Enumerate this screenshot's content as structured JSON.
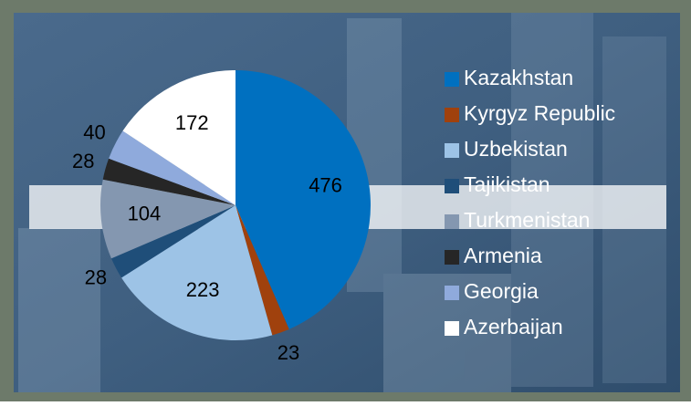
{
  "chart_data": {
    "type": "pie",
    "categories": [
      "Kazakhstan",
      "Kyrgyz Republic",
      "Uzbekistan",
      "Tajikistan",
      "Turkmenistan",
      "Armenia",
      "Georgia",
      "Azerbaijan"
    ],
    "values": [
      476,
      23,
      223,
      28,
      104,
      28,
      40,
      172
    ],
    "colors": [
      "#0070c0",
      "#a0410d",
      "#9dc3e6",
      "#1f4e79",
      "#8497b0",
      "#262626",
      "#8faadc",
      "#ffffff"
    ],
    "legend": "right"
  }
}
